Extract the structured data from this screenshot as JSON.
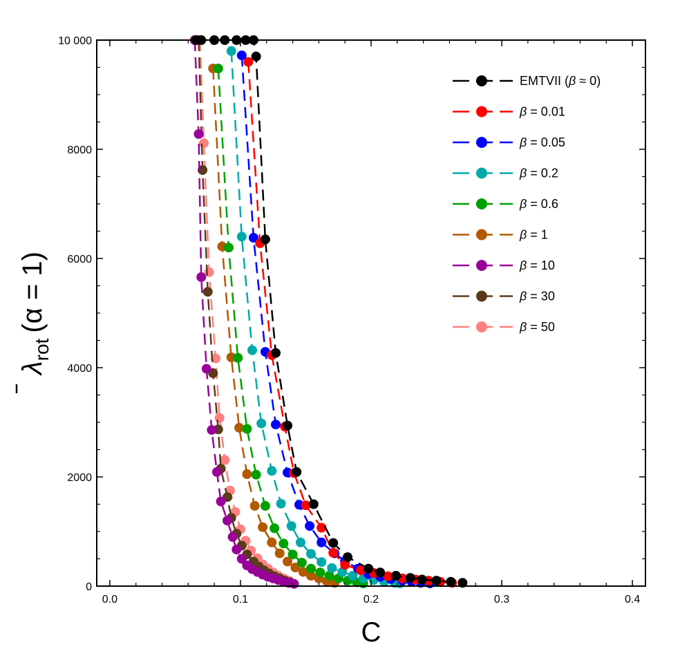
{
  "chart_data": {
    "type": "line",
    "title": "",
    "xlabel": "C",
    "ylabel_main": "λ",
    "ylabel_sub": "rot",
    "ylabel_tail": "(α = 1)",
    "xlim": [
      -0.01,
      0.41
    ],
    "ylim": [
      0,
      10000
    ],
    "x_ticks": [
      "0.0",
      "0.1",
      "0.2",
      "0.3",
      "0.4"
    ],
    "y_ticks": [
      "0",
      "2000",
      "4000",
      "6000",
      "8000",
      "10 000"
    ],
    "grid": false,
    "legend_position": "top-right",
    "series": [
      {
        "name": "EMTVII (β ≈ 0)",
        "color": "#000000",
        "x": [
          0.066,
          0.07,
          0.08,
          0.088,
          0.097,
          0.104,
          0.11,
          0.112,
          0.119,
          0.127,
          0.136,
          0.143,
          0.156,
          0.171,
          0.182,
          0.198,
          0.207,
          0.219,
          0.23,
          0.239,
          0.25,
          0.261,
          0.27
        ],
        "y": [
          10000,
          10000,
          10000,
          10000,
          10000,
          10000,
          10000,
          9700,
          6350,
          4270,
          2940,
          2090,
          1500,
          790,
          530,
          320,
          250,
          190,
          150,
          120,
          100,
          80,
          60
        ]
      },
      {
        "name": "β = 0.01",
        "color": "#ff0000",
        "x": [
          0.106,
          0.115,
          0.124,
          0.134,
          0.141,
          0.15,
          0.162,
          0.171,
          0.18,
          0.192,
          0.202,
          0.213,
          0.224,
          0.234,
          0.244,
          0.253,
          0.262
        ],
        "y": [
          9600,
          6280,
          4230,
          2920,
          2070,
          1480,
          1070,
          610,
          390,
          290,
          240,
          180,
          140,
          120,
          100,
          80,
          60
        ]
      },
      {
        "name": "β = 0.05",
        "color": "#0000ff",
        "x": [
          0.101,
          0.11,
          0.119,
          0.127,
          0.136,
          0.145,
          0.153,
          0.162,
          0.172,
          0.18,
          0.19,
          0.198,
          0.207,
          0.215,
          0.224,
          0.231,
          0.238,
          0.245
        ],
        "y": [
          9720,
          6380,
          4290,
          2960,
          2080,
          1490,
          1100,
          800,
          600,
          460,
          320,
          220,
          170,
          130,
          100,
          80,
          60,
          50
        ]
      },
      {
        "name": "β = 0.2",
        "color": "#00aaaa",
        "x": [
          0.093,
          0.101,
          0.109,
          0.116,
          0.124,
          0.131,
          0.139,
          0.146,
          0.154,
          0.162,
          0.17,
          0.178,
          0.186,
          0.194,
          0.202,
          0.21,
          0.218,
          0.222
        ],
        "y": [
          9800,
          6400,
          4320,
          2980,
          2110,
          1510,
          1100,
          800,
          590,
          440,
          330,
          260,
          190,
          140,
          110,
          80,
          60,
          50
        ]
      },
      {
        "name": "β = 0.6",
        "color": "#00a000",
        "x": [
          0.083,
          0.091,
          0.098,
          0.105,
          0.112,
          0.119,
          0.126,
          0.133,
          0.14,
          0.147,
          0.154,
          0.161,
          0.168,
          0.175,
          0.182,
          0.189,
          0.194
        ],
        "y": [
          9480,
          6200,
          4180,
          2880,
          2040,
          1470,
          1060,
          780,
          580,
          430,
          320,
          250,
          190,
          140,
          100,
          70,
          50
        ]
      },
      {
        "name": "β = 1",
        "color": "#b35900",
        "x": [
          0.079,
          0.086,
          0.093,
          0.099,
          0.105,
          0.111,
          0.117,
          0.124,
          0.13,
          0.136,
          0.142,
          0.148,
          0.154,
          0.16,
          0.166,
          0.172
        ],
        "y": [
          9480,
          6220,
          4190,
          2900,
          2050,
          1470,
          1080,
          800,
          600,
          450,
          340,
          260,
          190,
          140,
          90,
          60
        ]
      },
      {
        "name": "β = 10",
        "color": "#990099",
        "x": [
          0.065,
          0.068,
          0.07,
          0.074,
          0.078,
          0.082,
          0.085,
          0.09,
          0.094,
          0.097,
          0.101,
          0.105,
          0.109,
          0.113,
          0.117,
          0.121,
          0.125,
          0.129,
          0.133,
          0.137,
          0.141
        ],
        "y": [
          10000,
          8280,
          5660,
          3980,
          2860,
          2090,
          1550,
          1200,
          900,
          670,
          500,
          380,
          310,
          260,
          210,
          170,
          140,
          110,
          80,
          60,
          40
        ]
      },
      {
        "name": "β = 30",
        "color": "#5a3a1a",
        "x": [
          0.068,
          0.071,
          0.075,
          0.079,
          0.083,
          0.085,
          0.09,
          0.093,
          0.097,
          0.101,
          0.105,
          0.11,
          0.114,
          0.118,
          0.122,
          0.126,
          0.13,
          0.134,
          0.138
        ],
        "y": [
          10000,
          7620,
          5390,
          3900,
          2870,
          2150,
          1630,
          1250,
          960,
          740,
          580,
          450,
          360,
          290,
          230,
          180,
          140,
          100,
          70
        ]
      },
      {
        "name": "β = 50",
        "color": "#ff8080",
        "x": [
          0.069,
          0.072,
          0.076,
          0.081,
          0.084,
          0.088,
          0.092,
          0.096,
          0.1,
          0.104,
          0.108,
          0.113,
          0.117,
          0.121,
          0.125,
          0.129,
          0.133,
          0.137
        ],
        "y": [
          10000,
          8110,
          5750,
          4170,
          3080,
          2310,
          1750,
          1360,
          1040,
          830,
          650,
          510,
          400,
          320,
          250,
          190,
          140,
          100
        ]
      }
    ]
  }
}
